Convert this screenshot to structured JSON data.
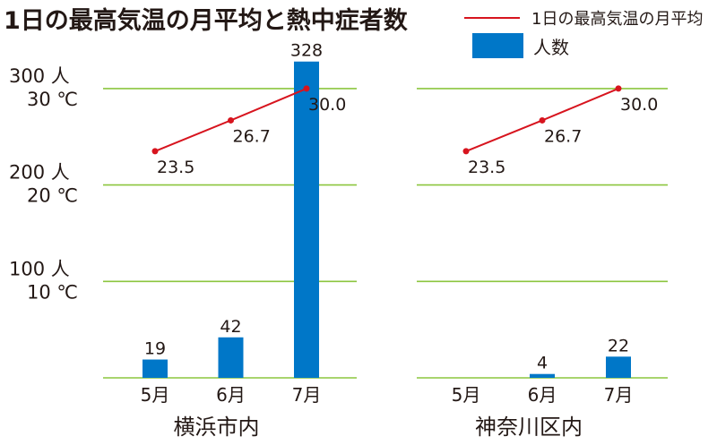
{
  "title": "1日の最高気温の月平均と熱中症者数",
  "legend": {
    "line_label": "1日の最高気温の月平均",
    "bar_label": "人数"
  },
  "colors": {
    "bar": "#0077c8",
    "line": "#d7141e",
    "grid": "#8cc63f"
  },
  "y_ticks": [
    {
      "people": "300 人",
      "temp": "30 ℃",
      "value": 300
    },
    {
      "people": "200 人",
      "temp": "20 ℃",
      "value": 200
    },
    {
      "people": "100 人",
      "temp": "10 ℃",
      "value": 100
    }
  ],
  "chart_data": [
    {
      "type": "bar+line",
      "title": "横浜市内",
      "categories": [
        "5月",
        "6月",
        "7月"
      ],
      "bars": {
        "name": "人数",
        "values": [
          19,
          42,
          328
        ],
        "labels": [
          "19",
          "42",
          "328"
        ]
      },
      "line": {
        "name": "1日の最高気温の月平均",
        "values": [
          23.5,
          26.7,
          30.0
        ],
        "labels": [
          "23.5",
          "26.7",
          "30.0"
        ]
      },
      "ylim_people": [
        0,
        300
      ],
      "ylim_temp": [
        0,
        30
      ],
      "grid": true
    },
    {
      "type": "bar+line",
      "title": "神奈川区内",
      "categories": [
        "5月",
        "6月",
        "7月"
      ],
      "bars": {
        "name": "人数",
        "values": [
          0,
          4,
          22
        ],
        "labels": [
          "",
          "4",
          "22"
        ]
      },
      "line": {
        "name": "1日の最高気温の月平均",
        "values": [
          23.5,
          26.7,
          30.0
        ],
        "labels": [
          "23.5",
          "26.7",
          "30.0"
        ]
      },
      "ylim_people": [
        0,
        300
      ],
      "ylim_temp": [
        0,
        30
      ],
      "grid": true
    }
  ]
}
